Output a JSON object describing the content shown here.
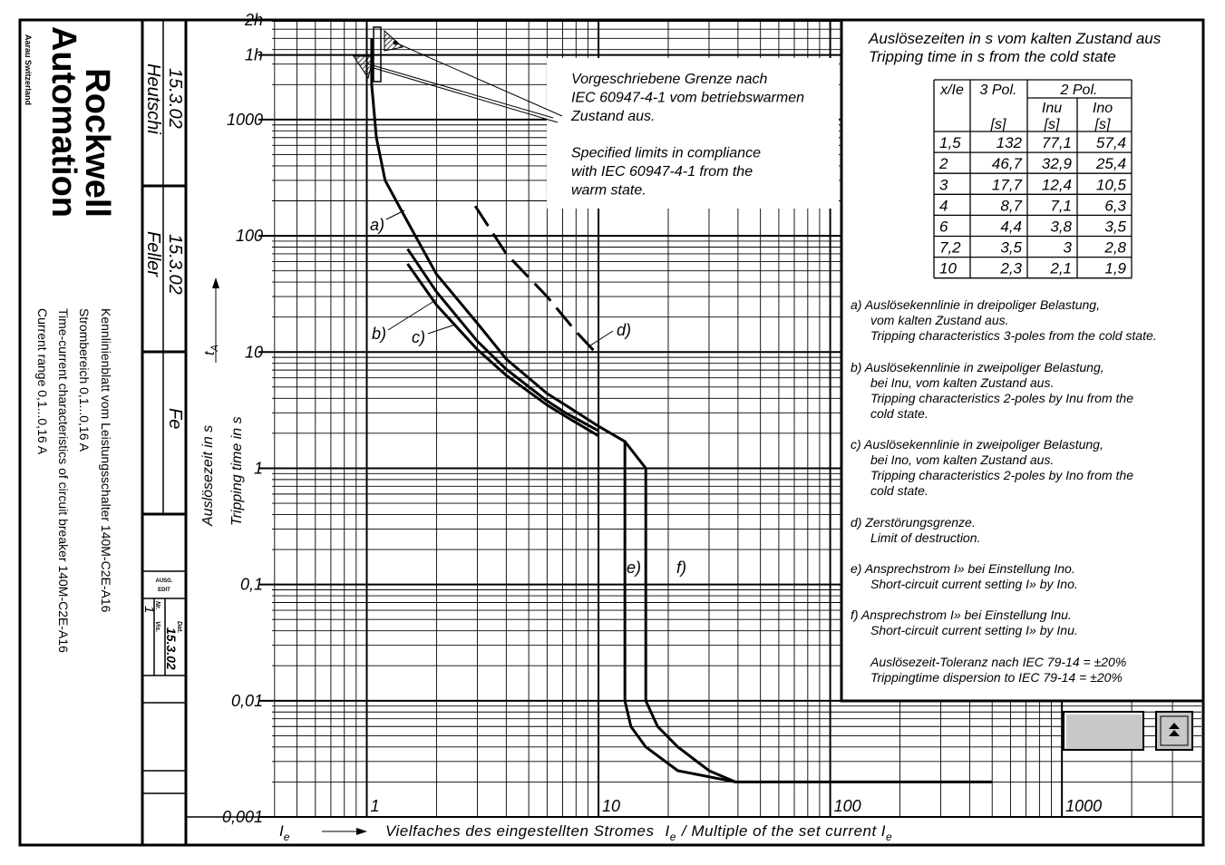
{
  "sidebar": {
    "company": [
      "Rockwell",
      "Automation"
    ],
    "location": "Aarau Switzerland",
    "description": [
      "Kennlinienblatt vom Leistungsschalter 140M-C2E-A16",
      "Strombereich 0,1...0,16 A",
      "Time-current characteristics of circuit breaker 140M-C2E-A16",
      "Current range 0,1...0,16 A"
    ]
  },
  "title_block": {
    "drawn_date": "15.3.02",
    "drawn_by": "Heutschi",
    "checked_date": "15.3.02",
    "checked_by": "Feller",
    "norm": "Fe",
    "edit_label": [
      "AUSG.",
      "EDIT"
    ],
    "edit": "1",
    "nr_label": "Nr.",
    "date_label": "Dat.",
    "vis_label": "Vis.",
    "edit_date": "15.3.02"
  },
  "chart_data": {
    "type": "line",
    "xscale": "log",
    "yscale": "log",
    "grid": true,
    "xlim": [
      0.39,
      4000
    ],
    "ylim": [
      0.001,
      7200
    ],
    "xticks": [
      1,
      10,
      100,
      1000
    ],
    "yticks": [
      {
        "value": 0.001,
        "label": "0,001"
      },
      {
        "value": 0.01,
        "label": "0,01"
      },
      {
        "value": 0.1,
        "label": "0,1"
      },
      1,
      10,
      100,
      1000,
      {
        "value": 3600,
        "label": "1h"
      },
      {
        "value": 7200,
        "label": "2h"
      }
    ],
    "ylabel": [
      "Auslösezeit in s",
      "Tripping time in s"
    ],
    "y_symbol": "t",
    "y_symbol_sub": "A",
    "x_symbol": "I",
    "x_symbol_sub": "e",
    "xlabel": [
      "Vielfaches des eingestellten Stromes",
      "/ Multiple of the set current"
    ],
    "annotation": [
      "Vorgeschriebene Grenze nach",
      "IEC 60947-4-1 vom betriebswarmen",
      "Zustand aus.",
      "Specified limits in compliance",
      "with IEC 60947-4-1 from the",
      "warm state."
    ],
    "series": [
      {
        "name": "a)",
        "color": "#000000",
        "x": [
          1.05,
          1.05,
          1.1,
          1.2,
          1.5,
          2,
          3,
          4,
          6,
          7.2,
          10
        ],
        "values": [
          5000,
          2000,
          700,
          300,
          132,
          46.7,
          17.7,
          8.7,
          4.4,
          3.5,
          2.3
        ]
      },
      {
        "name": "b)",
        "color": "#000000",
        "x": [
          1.5,
          2,
          3,
          4,
          6,
          7.2,
          10
        ],
        "values": [
          77.1,
          32.9,
          12.4,
          7.1,
          3.8,
          3,
          2.1
        ]
      },
      {
        "name": "c)",
        "color": "#000000",
        "x": [
          1.5,
          2,
          3,
          4,
          6,
          7.2,
          10
        ],
        "values": [
          57.4,
          25.4,
          10.5,
          6.3,
          3.5,
          2.8,
          1.9
        ]
      },
      {
        "name": "d)",
        "color": "#000000",
        "style": "dashed",
        "x": [
          2.94,
          4,
          6,
          8,
          10
        ],
        "values": [
          180,
          70,
          30,
          15,
          9.3
        ]
      },
      {
        "name": "e)",
        "color": "#000000",
        "x": [
          13,
          13,
          13.8,
          16,
          22,
          39
        ],
        "values": [
          1.7,
          0.01,
          0.006,
          0.004,
          0.0025,
          0.002
        ]
      },
      {
        "name": "f)",
        "color": "#000000",
        "x": [
          10,
          13,
          16,
          16,
          18,
          22,
          30,
          39,
          500
        ],
        "values": [
          2.3,
          1.7,
          1,
          0.01,
          0.006,
          0.004,
          0.0025,
          0.002,
          0.002
        ]
      }
    ]
  },
  "trip_table": {
    "title": [
      "Auslösezeiten in s vom kalten Zustand aus",
      "Tripping time in s from the cold state"
    ],
    "header": {
      "xie": "x/Ie",
      "pol3": "3 Pol.",
      "pol2": "2 Pol.",
      "inu": "Inu",
      "ino": "Ino",
      "unit": "[s]"
    },
    "rows": [
      [
        "1,5",
        "132",
        "77,1",
        "57,4"
      ],
      [
        "2",
        "46,7",
        "32,9",
        "25,4"
      ],
      [
        "3",
        "17,7",
        "12,4",
        "10,5"
      ],
      [
        "4",
        "8,7",
        "7,1",
        "6,3"
      ],
      [
        "6",
        "4,4",
        "3,8",
        "3,5"
      ],
      [
        "7,2",
        "3,5",
        "3",
        "2,8"
      ],
      [
        "10",
        "2,3",
        "2,1",
        "1,9"
      ]
    ]
  },
  "notes": [
    [
      "a) Auslösekennlinie in dreipoliger Belastung,",
      "vom kalten Zustand aus.",
      "Tripping characteristics 3-poles from the cold state."
    ],
    [
      "b) Auslösekennlinie in zweipoliger Belastung,",
      "bei Inu, vom kalten Zustand aus.",
      "Tripping characteristics 2-poles by Inu from the",
      "cold state."
    ],
    [
      "c) Auslösekennlinie in zweipoliger Belastung,",
      "bei Ino, vom kalten Zustand aus.",
      "Tripping characteristics 2-poles by Ino from the",
      "cold state."
    ],
    [
      "d) Zerstörungsgrenze.",
      "Limit of destruction."
    ],
    [
      "e) Ansprechstrom I» bei Einstellung Ino.",
      "Short-circuit current setting I» by Ino."
    ],
    [
      "f) Ansprechstrom I» bei Einstellung Inu.",
      "Short-circuit current setting I» by Inu."
    ],
    [
      "",
      "Auslösezeit-Toleranz nach IEC 79-14 = ±20%",
      "Trippingtime dispersion to IEC 79-14 = ±20%"
    ]
  ]
}
